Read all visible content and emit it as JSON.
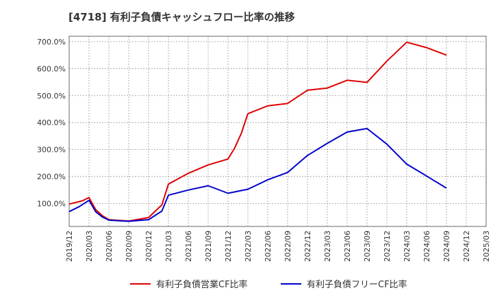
{
  "chart_data": {
    "type": "line",
    "title": "[4718]  有利子負債キャッシュフロー比率の推移",
    "xlabel": "",
    "ylabel": "",
    "ylim": [
      15,
      720
    ],
    "grid": true,
    "legend_position": "bottom",
    "x_ticks": [
      "2019/12",
      "2020/03",
      "2020/06",
      "2020/09",
      "2020/12",
      "2021/03",
      "2021/06",
      "2021/09",
      "2021/12",
      "2022/03",
      "2022/06",
      "2022/09",
      "2022/12",
      "2023/03",
      "2023/06",
      "2023/09",
      "2023/12",
      "2024/03",
      "2024/06",
      "2024/09",
      "2024/12",
      "2025/03"
    ],
    "y_ticks": [
      {
        "value": 100,
        "label": "100.0%"
      },
      {
        "value": 200,
        "label": "200.0%"
      },
      {
        "value": 300,
        "label": "300.0%"
      },
      {
        "value": 400,
        "label": "400.0%"
      },
      {
        "value": 500,
        "label": "500.0%"
      },
      {
        "value": 600,
        "label": "600.0%"
      },
      {
        "value": 700,
        "label": "700.0%"
      }
    ],
    "series": [
      {
        "name": "有利子負債営業CF比率",
        "color": "#dd0000",
        "x": [
          0,
          0.67,
          1,
          1.33,
          1.67,
          2,
          3,
          4,
          4.67,
          5,
          6,
          7,
          8,
          8.33,
          8.67,
          9,
          10,
          11,
          12,
          13,
          14,
          15,
          16,
          17,
          18,
          19
        ],
        "values": [
          98,
          110,
          122,
          78,
          55,
          40,
          35,
          48,
          95,
          172,
          212,
          243,
          265,
          305,
          360,
          433,
          462,
          471,
          520,
          528,
          557,
          549,
          628,
          698,
          678,
          650
        ]
      },
      {
        "name": "有利子負債フリーCF比率",
        "color": "#0000cc",
        "x": [
          0,
          0.5,
          1,
          1.33,
          1.67,
          2,
          3,
          4,
          4.67,
          5,
          6,
          7,
          8,
          9,
          10,
          11,
          12,
          13,
          14,
          15,
          16,
          17,
          18,
          19
        ],
        "values": [
          70,
          88,
          112,
          70,
          50,
          38,
          34,
          40,
          72,
          131,
          150,
          166,
          138,
          153,
          188,
          215,
          278,
          323,
          365,
          378,
          320,
          246,
          202,
          157
        ]
      }
    ]
  }
}
